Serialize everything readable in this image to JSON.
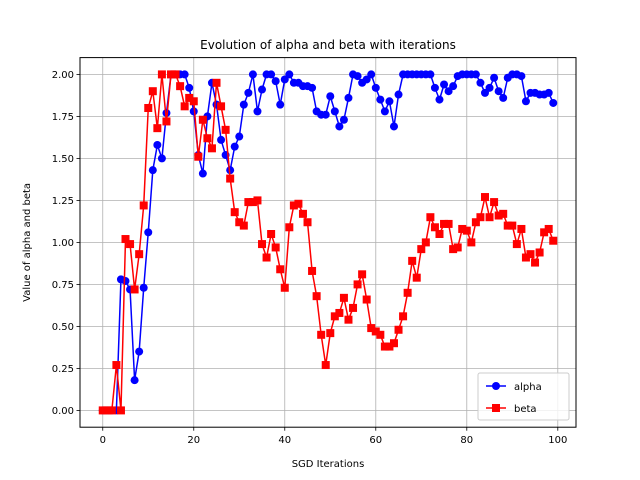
{
  "chart_data": {
    "type": "line",
    "title": "Evolution of alpha and beta with iterations",
    "xlabel": "SGD Iterations",
    "ylabel": "Value of alpha and beta",
    "xlim": [
      -5,
      104
    ],
    "ylim": [
      -0.1,
      2.1
    ],
    "xticks": [
      0,
      20,
      40,
      60,
      80,
      100
    ],
    "xtick_labels": [
      "0",
      "20",
      "40",
      "60",
      "80",
      "100"
    ],
    "yticks": [
      0.0,
      0.25,
      0.5,
      0.75,
      1.0,
      1.25,
      1.5,
      1.75,
      2.0
    ],
    "ytick_labels": [
      "0.00",
      "0.25",
      "0.50",
      "0.75",
      "1.00",
      "1.25",
      "1.50",
      "1.75",
      "2.00"
    ],
    "grid": true,
    "legend_position": "bottom-right",
    "x": [
      0,
      1,
      2,
      3,
      4,
      5,
      6,
      7,
      8,
      9,
      10,
      11,
      12,
      13,
      14,
      15,
      16,
      17,
      18,
      19,
      20,
      21,
      22,
      23,
      24,
      25,
      26,
      27,
      28,
      29,
      30,
      31,
      32,
      33,
      34,
      35,
      36,
      37,
      38,
      39,
      40,
      41,
      42,
      43,
      44,
      45,
      46,
      47,
      48,
      49,
      50,
      51,
      52,
      53,
      54,
      55,
      56,
      57,
      58,
      59,
      60,
      61,
      62,
      63,
      64,
      65,
      66,
      67,
      68,
      69,
      70,
      71,
      72,
      73,
      74,
      75,
      76,
      77,
      78,
      79,
      80,
      81,
      82,
      83,
      84,
      85,
      86,
      87,
      88,
      89,
      90,
      91,
      92,
      93,
      94,
      95,
      96,
      97,
      98,
      99
    ],
    "series": [
      {
        "name": "alpha",
        "color": "#0000ff",
        "marker": "circle",
        "values": [
          0.0,
          0.0,
          0.0,
          0.0,
          0.78,
          0.77,
          0.72,
          0.18,
          0.35,
          0.73,
          1.06,
          1.43,
          1.58,
          1.5,
          1.77,
          2.0,
          2.0,
          2.0,
          2.0,
          1.92,
          1.78,
          1.52,
          1.41,
          1.75,
          1.95,
          1.82,
          1.61,
          1.52,
          1.43,
          1.57,
          1.63,
          1.82,
          1.89,
          2.0,
          1.78,
          1.91,
          2.0,
          2.0,
          1.96,
          1.82,
          1.97,
          2.0,
          1.95,
          1.95,
          1.93,
          1.93,
          1.92,
          1.78,
          1.76,
          1.76,
          1.87,
          1.78,
          1.69,
          1.73,
          1.86,
          2.0,
          1.99,
          1.95,
          1.97,
          2.0,
          1.92,
          1.85,
          1.78,
          1.84,
          1.69,
          1.88,
          2.0,
          2.0,
          2.0,
          2.0,
          2.0,
          2.0,
          2.0,
          1.92,
          1.85,
          1.94,
          1.9,
          1.93,
          1.99,
          2.0,
          2.0,
          2.0,
          2.0,
          1.95,
          1.89,
          1.92,
          1.98,
          1.9,
          1.86,
          1.98,
          2.0,
          2.0,
          1.99,
          1.84,
          1.89,
          1.89,
          1.88,
          1.88,
          1.89,
          1.83
        ]
      },
      {
        "name": "beta",
        "color": "#ff0000",
        "marker": "square",
        "values": [
          0.0,
          0.0,
          0.0,
          0.27,
          0.0,
          1.02,
          0.99,
          0.72,
          0.93,
          1.22,
          1.8,
          1.9,
          1.68,
          2.0,
          1.72,
          2.0,
          2.0,
          1.93,
          1.81,
          1.86,
          1.84,
          1.51,
          1.73,
          1.62,
          1.56,
          1.95,
          1.81,
          1.67,
          1.38,
          1.18,
          1.12,
          1.1,
          1.24,
          1.24,
          1.25,
          0.99,
          0.91,
          1.05,
          0.97,
          0.84,
          0.73,
          1.09,
          1.22,
          1.23,
          1.17,
          1.12,
          0.83,
          0.68,
          0.45,
          0.27,
          0.46,
          0.56,
          0.58,
          0.67,
          0.54,
          0.61,
          0.75,
          0.81,
          0.66,
          0.49,
          0.47,
          0.45,
          0.38,
          0.38,
          0.4,
          0.48,
          0.56,
          0.7,
          0.89,
          0.79,
          0.96,
          1.0,
          1.15,
          1.09,
          1.05,
          1.11,
          1.11,
          0.96,
          0.97,
          1.08,
          1.07,
          1.0,
          1.12,
          1.15,
          1.27,
          1.15,
          1.24,
          1.16,
          1.17,
          1.1,
          1.1,
          0.99,
          1.08,
          0.91,
          0.93,
          0.88,
          0.94,
          1.06,
          1.08,
          1.01
        ]
      }
    ]
  }
}
